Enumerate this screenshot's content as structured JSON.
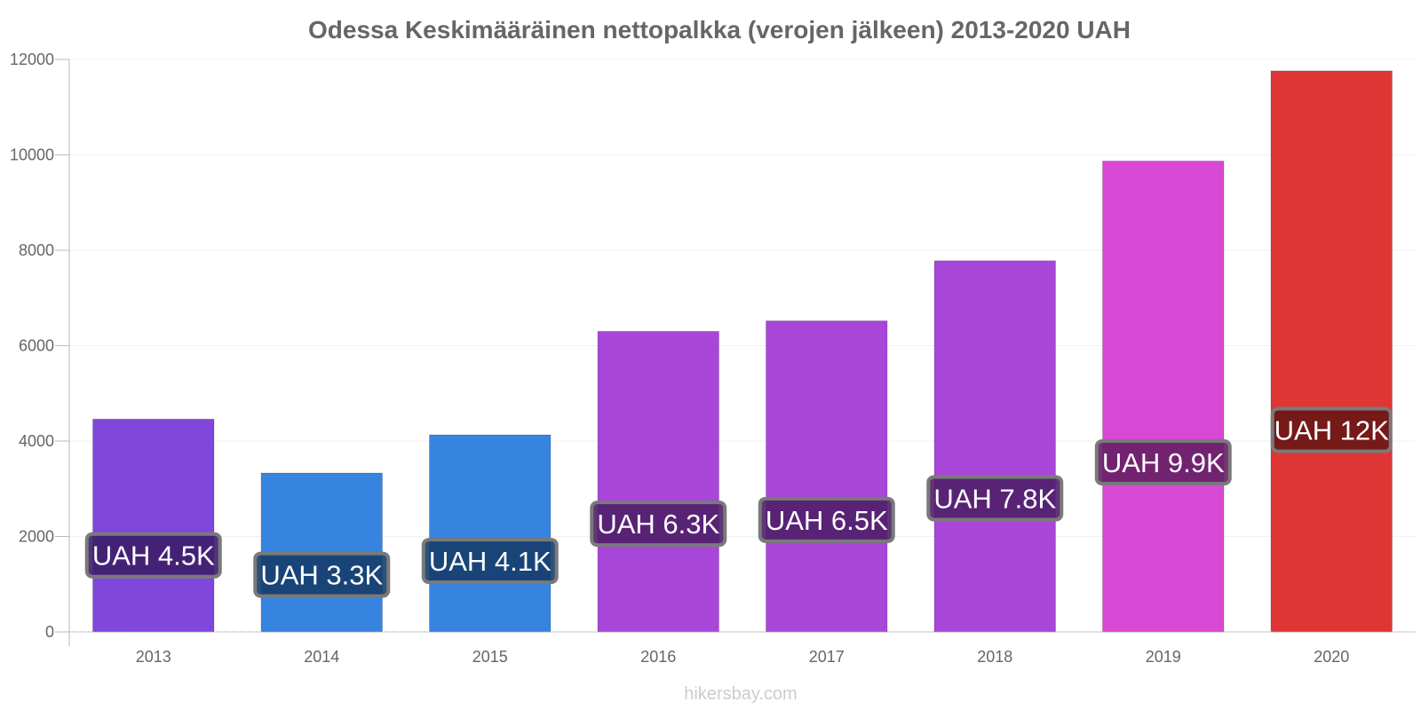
{
  "chart_data": {
    "type": "bar",
    "title": "Odessa Keskimääräinen nettopalkka (verojen jälkeen) 2013-2020 UAH",
    "xlabel": "",
    "ylabel": "",
    "categories": [
      "2013",
      "2014",
      "2015",
      "2016",
      "2017",
      "2018",
      "2019",
      "2020"
    ],
    "values": [
      4460,
      3330,
      4130,
      6300,
      6520,
      7780,
      9870,
      11760
    ],
    "data_labels": [
      "UAH 4.5K",
      "UAH 3.3K",
      "UAH 4.1K",
      "UAH 6.3K",
      "UAH 6.5K",
      "UAH 7.8K",
      "UAH 9.9K",
      "UAH 12K"
    ],
    "bar_colors": [
      "#8047db",
      "#3684e0",
      "#3684e0",
      "#a846d9",
      "#a846d9",
      "#a846d9",
      "#d748d5",
      "#e03535"
    ],
    "label_bg_colors": [
      "#3c1e6a",
      "#163d6b",
      "#163d6b",
      "#4f1f68",
      "#4f1f68",
      "#4f1f68",
      "#661f65",
      "#6a1616"
    ],
    "ylim": [
      0,
      12000
    ],
    "yticks": [
      0,
      2000,
      4000,
      6000,
      8000,
      10000,
      12000
    ],
    "grid": true,
    "legend": "none"
  },
  "footer": {
    "source": "hikersbay.com"
  }
}
